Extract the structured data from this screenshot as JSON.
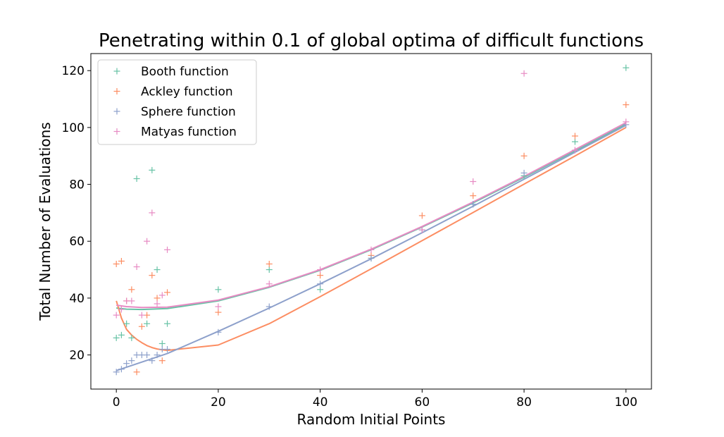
{
  "chart_data": {
    "type": "scatter",
    "title": "Penetrating within 0.1 of global optima of difficult functions",
    "xlabel": "Random Initial Points",
    "ylabel": "Total Number of Evaluations",
    "xlim": [
      -5,
      105
    ],
    "ylim": [
      8,
      126
    ],
    "xticks": [
      0,
      20,
      40,
      60,
      80,
      100
    ],
    "yticks": [
      20,
      40,
      60,
      80,
      100,
      120
    ],
    "grid": false,
    "legend_position": "top-left",
    "series": [
      {
        "name": "Booth function",
        "color": "#66c2a5",
        "points": [
          [
            0,
            26
          ],
          [
            1,
            27
          ],
          [
            2,
            31
          ],
          [
            3,
            26
          ],
          [
            4,
            82
          ],
          [
            6,
            31
          ],
          [
            7,
            85
          ],
          [
            8,
            50
          ],
          [
            9,
            24
          ],
          [
            10,
            31
          ],
          [
            20,
            43
          ],
          [
            30,
            50
          ],
          [
            40,
            43
          ],
          [
            50,
            54
          ],
          [
            60,
            64
          ],
          [
            70,
            73
          ],
          [
            80,
            83
          ],
          [
            90,
            95
          ],
          [
            100,
            121
          ]
        ],
        "fit": [
          [
            0,
            36.5
          ],
          [
            2,
            36.1
          ],
          [
            5,
            36.0
          ],
          [
            10,
            36.3
          ],
          [
            20,
            39.0
          ],
          [
            30,
            43.8
          ],
          [
            40,
            49.8
          ],
          [
            50,
            57.0
          ],
          [
            60,
            65.0
          ],
          [
            70,
            73.5
          ],
          [
            80,
            82.5
          ],
          [
            90,
            91.8
          ],
          [
            100,
            101.2
          ]
        ]
      },
      {
        "name": "Ackley function",
        "color": "#fc8d62",
        "points": [
          [
            0,
            52
          ],
          [
            1,
            53
          ],
          [
            2,
            39
          ],
          [
            3,
            43
          ],
          [
            4,
            14
          ],
          [
            5,
            30
          ],
          [
            6,
            34
          ],
          [
            7,
            48
          ],
          [
            8,
            40
          ],
          [
            9,
            18
          ],
          [
            10,
            42
          ],
          [
            20,
            35
          ],
          [
            30,
            52
          ],
          [
            40,
            48
          ],
          [
            50,
            55
          ],
          [
            60,
            69
          ],
          [
            70,
            76
          ],
          [
            80,
            90
          ],
          [
            90,
            97
          ],
          [
            100,
            108
          ]
        ],
        "fit": [
          [
            0,
            39
          ],
          [
            1,
            33
          ],
          [
            2,
            29
          ],
          [
            3,
            27
          ],
          [
            4,
            25.5
          ],
          [
            5,
            24.3
          ],
          [
            6,
            23.3
          ],
          [
            7,
            22.6
          ],
          [
            8,
            22.1
          ],
          [
            9,
            21.8
          ],
          [
            10,
            21.6
          ],
          [
            20,
            23.5
          ],
          [
            30,
            31
          ],
          [
            40,
            40.5
          ],
          [
            50,
            50.3
          ],
          [
            60,
            60.2
          ],
          [
            70,
            70.1
          ],
          [
            80,
            80.1
          ],
          [
            90,
            90.0
          ],
          [
            100,
            100.0
          ]
        ]
      },
      {
        "name": "Sphere function",
        "color": "#8da0cb",
        "points": [
          [
            0,
            14
          ],
          [
            1,
            15
          ],
          [
            2,
            17
          ],
          [
            3,
            18
          ],
          [
            4,
            20
          ],
          [
            5,
            20
          ],
          [
            6,
            20
          ],
          [
            7,
            18
          ],
          [
            8,
            20
          ],
          [
            9,
            22
          ],
          [
            10,
            22
          ],
          [
            20,
            28
          ],
          [
            30,
            37
          ],
          [
            40,
            45
          ],
          [
            50,
            54
          ],
          [
            60,
            64
          ],
          [
            70,
            73
          ],
          [
            80,
            84
          ],
          [
            90,
            92
          ],
          [
            100,
            101
          ]
        ],
        "fit": [
          [
            0,
            14.5
          ],
          [
            10,
            20.5
          ],
          [
            20,
            28.3
          ],
          [
            30,
            36.5
          ],
          [
            40,
            45.0
          ],
          [
            50,
            53.8
          ],
          [
            60,
            63.0
          ],
          [
            70,
            72.3
          ],
          [
            80,
            81.8
          ],
          [
            90,
            91.3
          ],
          [
            100,
            100.8
          ]
        ]
      },
      {
        "name": "Matyas function",
        "color": "#e78ac3",
        "points": [
          [
            0,
            34
          ],
          [
            1,
            36
          ],
          [
            2,
            39
          ],
          [
            3,
            39
          ],
          [
            4,
            51
          ],
          [
            5,
            34
          ],
          [
            6,
            60
          ],
          [
            7,
            70
          ],
          [
            8,
            38
          ],
          [
            9,
            41
          ],
          [
            10,
            57
          ],
          [
            20,
            37
          ],
          [
            30,
            45
          ],
          [
            40,
            50
          ],
          [
            50,
            57
          ],
          [
            60,
            64
          ],
          [
            70,
            81
          ],
          [
            80,
            119
          ],
          [
            90,
            92
          ],
          [
            100,
            102
          ]
        ],
        "fit": [
          [
            0,
            37.5
          ],
          [
            2,
            37.0
          ],
          [
            5,
            36.7
          ],
          [
            10,
            36.8
          ],
          [
            20,
            39.3
          ],
          [
            30,
            44.0
          ],
          [
            40,
            50.0
          ],
          [
            50,
            57.2
          ],
          [
            60,
            65.2
          ],
          [
            70,
            73.8
          ],
          [
            80,
            82.8
          ],
          [
            90,
            92.2
          ],
          [
            100,
            101.7
          ]
        ]
      }
    ]
  }
}
